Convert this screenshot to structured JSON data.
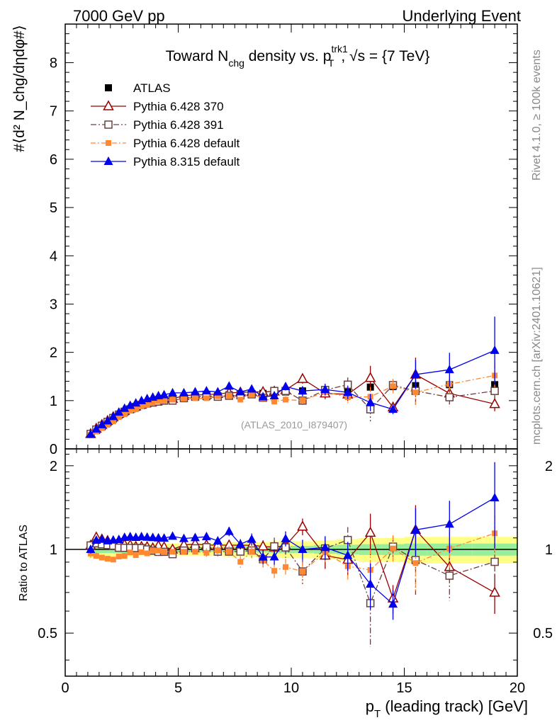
{
  "header": {
    "left": "7000 GeV pp",
    "right": "Underlying Event"
  },
  "chart_data": {
    "type": "scatter",
    "title": {
      "pre": "Toward N",
      "sub1": "chg",
      "mid": " density vs. p",
      "sup2": "trk1",
      "sub2": "T",
      "post": ", √s = {7 TeV}"
    },
    "ylabel": "#⟨d² N_chg/dηdφ#⟩",
    "ratio_ylabel": "Ratio to ATLAS",
    "xlabel": {
      "pre": "p",
      "sub": "T",
      "post": " (leading track) [GeV]"
    },
    "watermark": "(ATLAS_2010_I879407)",
    "side_texts": [
      "Rivet 4.1.0, ≥ 100k events",
      "mcplots.cern.ch [arXiv:2401.10621]"
    ],
    "xlim": [
      0,
      20
    ],
    "ylim": [
      0,
      8.8
    ],
    "ratio_ylim": [
      0.35,
      2.3
    ],
    "xticks": [
      0,
      5,
      10,
      15,
      20
    ],
    "yticks": [
      0,
      1,
      2,
      3,
      4,
      5,
      6,
      7,
      8
    ],
    "ratio_yticks": [
      0.5,
      1,
      2
    ],
    "x": [
      1.125,
      1.375,
      1.625,
      1.875,
      2.125,
      2.375,
      2.625,
      2.875,
      3.125,
      3.375,
      3.625,
      3.875,
      4.125,
      4.375,
      4.75,
      5.25,
      5.75,
      6.25,
      6.75,
      7.25,
      7.75,
      8.25,
      8.75,
      9.25,
      9.75,
      10.5,
      11.5,
      12.5,
      13.5,
      14.5,
      15.5,
      17,
      19
    ],
    "series": [
      {
        "name": "ATLAS",
        "color": "#000000",
        "values": [
          0.3,
          0.38,
          0.46,
          0.54,
          0.62,
          0.7,
          0.76,
          0.81,
          0.86,
          0.9,
          0.94,
          0.97,
          1.0,
          1.02,
          1.04,
          1.06,
          1.07,
          1.08,
          1.1,
          1.12,
          1.13,
          1.14,
          1.15,
          1.17,
          1.18,
          1.2,
          1.21,
          1.23,
          1.28,
          1.29,
          1.31,
          1.33,
          1.33
        ],
        "errors": [
          0.02,
          0.02,
          0.02,
          0.02,
          0.02,
          0.02,
          0.02,
          0.02,
          0.02,
          0.02,
          0.02,
          0.02,
          0.02,
          0.02,
          0.02,
          0.02,
          0.02,
          0.02,
          0.02,
          0.03,
          0.03,
          0.03,
          0.03,
          0.04,
          0.04,
          0.05,
          0.06,
          0.07,
          0.08,
          0.09,
          0.1,
          0.12,
          0.15
        ]
      },
      {
        "name": "Pythia 6.428 370",
        "color": "#990000",
        "values": [
          0.31,
          0.42,
          0.5,
          0.58,
          0.66,
          0.73,
          0.79,
          0.84,
          0.88,
          0.92,
          0.96,
          0.98,
          1.03,
          1.04,
          1.04,
          1.1,
          1.12,
          1.12,
          1.14,
          1.16,
          1.17,
          1.18,
          1.18,
          1.19,
          1.22,
          1.45,
          1.15,
          1.13,
          1.47,
          0.86,
          1.54,
          1.15,
          0.93
        ],
        "errors": [
          0.01,
          0.01,
          0.01,
          0.01,
          0.01,
          0.01,
          0.01,
          0.01,
          0.01,
          0.01,
          0.01,
          0.02,
          0.02,
          0.02,
          0.02,
          0.02,
          0.03,
          0.04,
          0.04,
          0.05,
          0.05,
          0.06,
          0.06,
          0.07,
          0.08,
          0.1,
          0.12,
          0.14,
          0.25,
          0.1,
          0.35,
          0.12,
          0.15
        ]
      },
      {
        "name": "Pythia 6.428 391",
        "color": "#694040",
        "values": [
          0.31,
          0.4,
          0.48,
          0.56,
          0.64,
          0.71,
          0.77,
          0.82,
          0.87,
          0.91,
          0.94,
          0.96,
          0.98,
          1.0,
          1.0,
          1.05,
          1.08,
          1.1,
          1.08,
          1.1,
          1.11,
          1.13,
          1.06,
          1.2,
          1.2,
          1.0,
          1.22,
          1.33,
          0.82,
          1.32,
          1.2,
          1.07,
          1.2
        ],
        "errors": [
          0.01,
          0.01,
          0.01,
          0.01,
          0.01,
          0.01,
          0.01,
          0.01,
          0.01,
          0.01,
          0.01,
          0.02,
          0.02,
          0.02,
          0.02,
          0.02,
          0.03,
          0.04,
          0.04,
          0.05,
          0.05,
          0.06,
          0.08,
          0.09,
          0.1,
          0.1,
          0.12,
          0.15,
          0.25,
          0.12,
          0.3,
          0.2,
          0.2
        ]
      },
      {
        "name": "Pythia 6.428 default",
        "color": "#ff8833",
        "values": [
          0.29,
          0.36,
          0.43,
          0.5,
          0.57,
          0.66,
          0.72,
          0.79,
          0.82,
          0.88,
          0.91,
          0.96,
          0.99,
          1.0,
          1.02,
          1.04,
          1.05,
          1.05,
          1.09,
          1.1,
          1.02,
          1.12,
          1.05,
          0.98,
          1.02,
          1.0,
          1.18,
          1.07,
          1.08,
          1.3,
          1.17,
          1.34,
          1.52
        ],
        "errors": [
          0.01,
          0.01,
          0.01,
          0.01,
          0.01,
          0.01,
          0.01,
          0.01,
          0.01,
          0.01,
          0.01,
          0.02,
          0.02,
          0.02,
          0.02,
          0.02,
          0.03,
          0.04,
          0.04,
          0.05,
          0.05,
          0.06,
          0.06,
          0.07,
          0.07,
          0.08,
          0.1,
          0.12,
          0.2,
          0.15,
          0.25,
          0.2,
          0.25
        ]
      },
      {
        "name": "Pythia 8.315 default",
        "color": "#0000ee",
        "values": [
          0.3,
          0.41,
          0.5,
          0.58,
          0.67,
          0.76,
          0.84,
          0.9,
          0.95,
          1.0,
          1.04,
          1.07,
          1.1,
          1.12,
          1.16,
          1.16,
          1.18,
          1.2,
          1.18,
          1.3,
          1.18,
          1.24,
          1.08,
          1.1,
          1.29,
          1.2,
          1.23,
          1.17,
          0.96,
          0.82,
          1.54,
          1.64,
          2.04
        ],
        "errors": [
          0.01,
          0.01,
          0.01,
          0.01,
          0.01,
          0.01,
          0.01,
          0.01,
          0.01,
          0.01,
          0.01,
          0.02,
          0.02,
          0.02,
          0.02,
          0.02,
          0.03,
          0.04,
          0.04,
          0.05,
          0.05,
          0.06,
          0.06,
          0.07,
          0.08,
          0.1,
          0.12,
          0.14,
          0.18,
          0.1,
          0.3,
          0.35,
          0.7
        ]
      }
    ],
    "ratio_band": {
      "x_edges": [
        1.0,
        2.0,
        2.75,
        3.25,
        3.75,
        4.25,
        5,
        6,
        7,
        8,
        9,
        10,
        11,
        12,
        13,
        14,
        15,
        16,
        18,
        20
      ],
      "inner": [
        0.03,
        0.03,
        0.025,
        0.02,
        0.02,
        0.02,
        0.02,
        0.02,
        0.025,
        0.025,
        0.03,
        0.03,
        0.035,
        0.04,
        0.045,
        0.045,
        0.05,
        0.05,
        0.05
      ],
      "outer": [
        0.07,
        0.07,
        0.06,
        0.05,
        0.05,
        0.05,
        0.05,
        0.05,
        0.06,
        0.06,
        0.07,
        0.07,
        0.08,
        0.09,
        0.1,
        0.1,
        0.11,
        0.11,
        0.11
      ]
    }
  }
}
